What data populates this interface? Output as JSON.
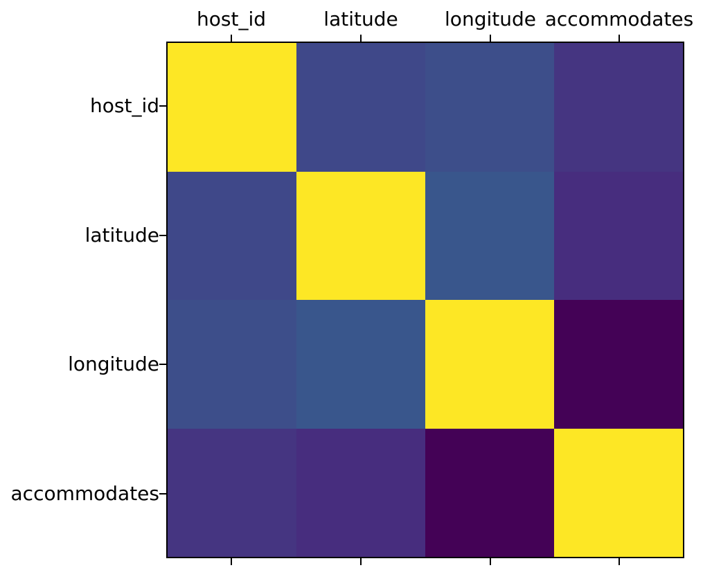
{
  "figure": {
    "background_color": "#ffffff",
    "axes_border_color": "#000000",
    "text_color": "#000000"
  },
  "chart_data": {
    "type": "heatmap",
    "title": "",
    "xlabel": "",
    "ylabel": "",
    "colormap": "viridis",
    "legend_position": "none",
    "grid": false,
    "x_axis_position": "top",
    "categories": [
      "host_id",
      "latitude",
      "longitude",
      "accommodates"
    ],
    "values_estimated": [
      [
        1.0,
        0.06,
        0.09,
        -0.01
      ],
      [
        0.06,
        1.0,
        0.12,
        -0.05
      ],
      [
        0.09,
        0.12,
        1.0,
        -0.17
      ],
      [
        -0.01,
        -0.05,
        -0.17,
        1.0
      ]
    ],
    "value_range_estimated": [
      -0.17,
      1.0
    ],
    "cell_colors": [
      [
        "#FDE725",
        "#3F4889",
        "#3D4E8A",
        "#453581"
      ],
      [
        "#3F4889",
        "#FDE725",
        "#39568C",
        "#472D7E"
      ],
      [
        "#3D4E8A",
        "#39568C",
        "#FDE725",
        "#440256"
      ],
      [
        "#453581",
        "#472D7E",
        "#440256",
        "#FDE725"
      ]
    ]
  }
}
